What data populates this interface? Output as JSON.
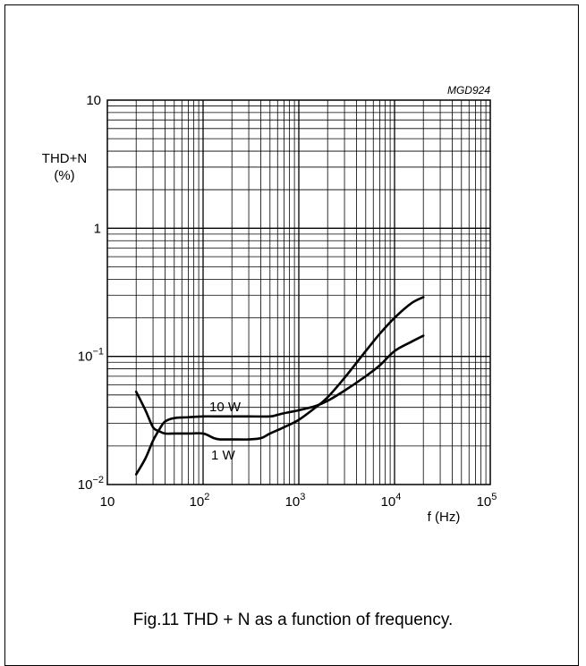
{
  "figure_code": "MGD924",
  "caption": "Fig.11  THD + N as a function of frequency.",
  "colors": {
    "line": "#000000",
    "grid": "#000000",
    "background": "#ffffff"
  },
  "chart_data": {
    "type": "line",
    "title": "",
    "xlabel": "f (Hz)",
    "ylabel": [
      "THD+N",
      "(%)"
    ],
    "x_scale": "log",
    "y_scale": "log",
    "xlim": [
      10,
      100000
    ],
    "ylim": [
      0.01,
      10
    ],
    "grid": true,
    "x_ticks": [
      {
        "value": 10,
        "base": "10",
        "exp": ""
      },
      {
        "value": 100,
        "base": "10",
        "exp": "2"
      },
      {
        "value": 1000,
        "base": "10",
        "exp": "3"
      },
      {
        "value": 10000,
        "base": "10",
        "exp": "4"
      },
      {
        "value": 100000,
        "base": "10",
        "exp": "5"
      }
    ],
    "y_ticks": [
      {
        "value": 10,
        "base": "10",
        "exp": ""
      },
      {
        "value": 1,
        "base": "1",
        "exp": ""
      },
      {
        "value": 0.1,
        "base": "10",
        "exp": "−1"
      },
      {
        "value": 0.01,
        "base": "10",
        "exp": "−2"
      }
    ],
    "series": [
      {
        "name": "10 W",
        "x": [
          20,
          25,
          30,
          35,
          40,
          50,
          70,
          100,
          150,
          200,
          300,
          500,
          600,
          700,
          1000,
          1500,
          2000,
          3000,
          5000,
          7000,
          10000,
          15000,
          20000
        ],
        "y": [
          0.012,
          0.016,
          0.022,
          0.027,
          0.031,
          0.033,
          0.0335,
          0.034,
          0.034,
          0.034,
          0.034,
          0.034,
          0.035,
          0.036,
          0.038,
          0.041,
          0.045,
          0.054,
          0.07,
          0.085,
          0.11,
          0.13,
          0.145
        ]
      },
      {
        "name": "1 W",
        "x": [
          20,
          25,
          30,
          35,
          40,
          50,
          70,
          100,
          130,
          150,
          200,
          300,
          400,
          500,
          700,
          1000,
          1500,
          2000,
          3000,
          5000,
          7000,
          10000,
          15000,
          20000
        ],
        "y": [
          0.053,
          0.038,
          0.028,
          0.026,
          0.025,
          0.025,
          0.025,
          0.025,
          0.023,
          0.0225,
          0.0225,
          0.0225,
          0.023,
          0.025,
          0.028,
          0.032,
          0.04,
          0.048,
          0.068,
          0.11,
          0.15,
          0.2,
          0.26,
          0.29
        ]
      }
    ],
    "annotations": [
      {
        "text": "10 W",
        "series": "10 W"
      },
      {
        "text": "1 W",
        "series": "1 W"
      }
    ]
  }
}
